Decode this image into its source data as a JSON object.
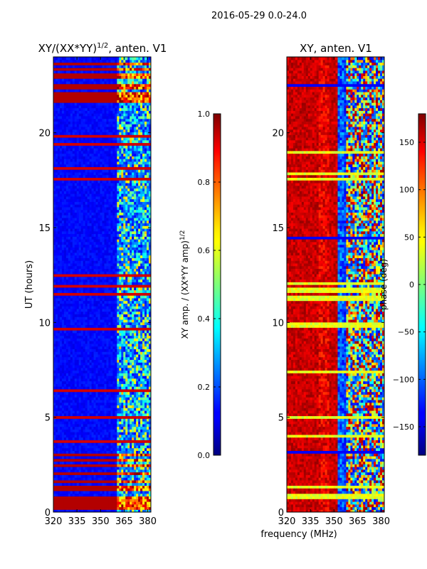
{
  "figure": {
    "suptitle": "2016-05-29 0.0-24.0",
    "common_xlabel": "frequency (MHz)"
  },
  "chart_data": [
    {
      "type": "heatmap",
      "title": "XY/(XX*YY)^{1/2}, anten. V1",
      "title_main": "XY/(XX*YY)",
      "title_exp": "1/2",
      "title_tail": ", anten. V1",
      "xlabel": "frequency (MHz)",
      "ylabel": "UT (hours)",
      "xlim": [
        320,
        382
      ],
      "ylim": [
        0,
        24
      ],
      "xticks": [
        320,
        335,
        350,
        365,
        380
      ],
      "yticks": [
        0,
        5,
        10,
        15,
        20
      ],
      "colorbar": {
        "label": "XY amp. / (XX*YY amp)^{1/2}",
        "label_main": "XY amp. / (XX*YY amp)",
        "label_exp": "1/2",
        "range": [
          0.0,
          1.0
        ],
        "ticks": [
          0.0,
          0.2,
          0.4,
          0.6,
          0.8,
          1.0
        ],
        "tick_labels": [
          "0.0",
          "0.2",
          "0.4",
          "0.6",
          "0.8",
          "1.0"
        ],
        "colormap": "jet"
      },
      "features": {
        "background_value": 0.1,
        "band_feature_freq_range": [
          360,
          382
        ],
        "noisy_time_ranges": [
          [
            0,
            3
          ],
          [
            21.5,
            24
          ]
        ]
      }
    },
    {
      "type": "heatmap",
      "title": "XY, anten. V1",
      "xlabel": "frequency (MHz)",
      "ylabel": "",
      "xlim": [
        320,
        382
      ],
      "ylim": [
        0,
        24
      ],
      "xticks": [
        320,
        335,
        350,
        365,
        380
      ],
      "yticks": [
        0,
        5,
        10,
        15,
        20
      ],
      "colorbar": {
        "label": "phase (deg)",
        "range": [
          -180,
          180
        ],
        "ticks": [
          -150,
          -100,
          -50,
          0,
          50,
          100,
          150
        ],
        "tick_labels": [
          "−150",
          "−100",
          "−50",
          "0",
          "50",
          "100",
          "150"
        ],
        "colormap": "jet"
      },
      "features": {
        "dominant_phase_deg": 160,
        "band_feature_freq_range": [
          357,
          382
        ],
        "low_freq_band_range": [
          320,
          356
        ]
      }
    }
  ]
}
